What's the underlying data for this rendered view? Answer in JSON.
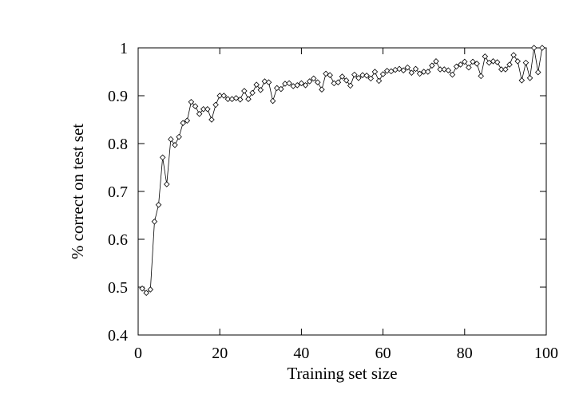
{
  "chart_data": {
    "type": "line",
    "title": "",
    "xlabel": "Training set size",
    "ylabel": "% correct on test set",
    "xlim": [
      0,
      100
    ],
    "ylim": [
      0.4,
      1.0
    ],
    "xticks": [
      0,
      20,
      40,
      60,
      80,
      100
    ],
    "xtick_labels": [
      "0",
      "20",
      "40",
      "60",
      "80",
      "100"
    ],
    "yticks": [
      0.4,
      0.5,
      0.6,
      0.7,
      0.8,
      0.9,
      1.0
    ],
    "ytick_labels": [
      "0.4",
      "0.5",
      "0.6",
      "0.7",
      "0.8",
      "0.9",
      "1"
    ],
    "grid": false,
    "legend": "none",
    "marker": "diamond",
    "line_color": "#000000",
    "series": [
      {
        "x": [
          1,
          2,
          3,
          4,
          5,
          6,
          7,
          8,
          9,
          10,
          11,
          12,
          13,
          14,
          15,
          16,
          17,
          18,
          19,
          20,
          21,
          22,
          23,
          24,
          25,
          26,
          27,
          28,
          29,
          30,
          31,
          32,
          33,
          34,
          35,
          36,
          37,
          38,
          39,
          40,
          41,
          42,
          43,
          44,
          45,
          46,
          47,
          48,
          49,
          50,
          51,
          52,
          53,
          54,
          55,
          56,
          57,
          58,
          59,
          60,
          61,
          62,
          63,
          64,
          65,
          66,
          67,
          68,
          69,
          70,
          71,
          72,
          73,
          74,
          75,
          76,
          77,
          78,
          79,
          80,
          81,
          82,
          83,
          84,
          85,
          86,
          87,
          88,
          89,
          90,
          91,
          92,
          93,
          94,
          95,
          96,
          97,
          98,
          99
        ],
        "values": [
          0.497,
          0.488,
          0.495,
          0.637,
          0.672,
          0.771,
          0.715,
          0.809,
          0.797,
          0.814,
          0.843,
          0.848,
          0.887,
          0.878,
          0.862,
          0.872,
          0.872,
          0.85,
          0.881,
          0.9,
          0.9,
          0.893,
          0.893,
          0.895,
          0.892,
          0.91,
          0.893,
          0.906,
          0.923,
          0.912,
          0.93,
          0.928,
          0.889,
          0.916,
          0.914,
          0.925,
          0.926,
          0.92,
          0.922,
          0.926,
          0.922,
          0.93,
          0.936,
          0.928,
          0.913,
          0.946,
          0.943,
          0.926,
          0.928,
          0.94,
          0.932,
          0.921,
          0.944,
          0.937,
          0.943,
          0.942,
          0.936,
          0.95,
          0.931,
          0.945,
          0.952,
          0.951,
          0.954,
          0.956,
          0.953,
          0.959,
          0.948,
          0.956,
          0.946,
          0.95,
          0.95,
          0.963,
          0.972,
          0.955,
          0.955,
          0.953,
          0.944,
          0.961,
          0.965,
          0.971,
          0.959,
          0.971,
          0.967,
          0.941,
          0.982,
          0.969,
          0.972,
          0.97,
          0.955,
          0.955,
          0.965,
          0.985,
          0.972,
          0.932,
          0.969,
          0.937,
          1.0,
          0.949,
          1.0
        ]
      }
    ]
  }
}
